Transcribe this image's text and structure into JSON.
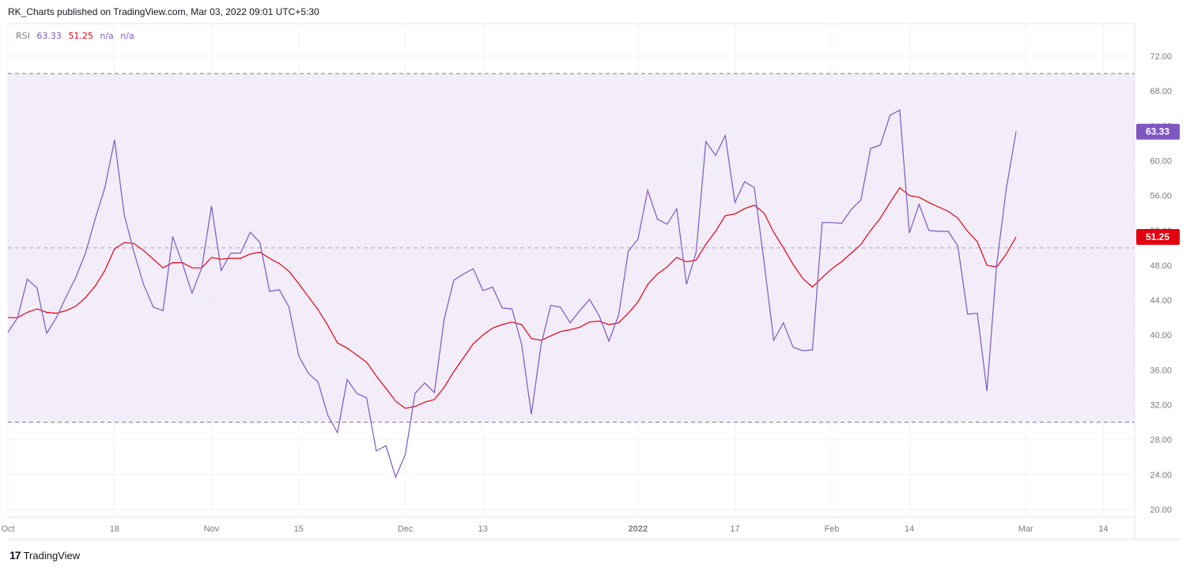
{
  "header": {
    "text": "RK_Charts published on TradingView.com, Mar 03, 2022 09:01 UTC+5:30"
  },
  "legend": {
    "name": "RSI",
    "rsi_value": "63.33",
    "ma_value": "51.25",
    "na1": "n/a",
    "na2": "n/a"
  },
  "footer": {
    "logo": "17",
    "brand": "TradingView"
  },
  "colors": {
    "rsi": "#7e57c2",
    "ma": "#e3000f",
    "band": "#ede7f6",
    "grid": "#f0f3fa"
  },
  "chart_data": {
    "type": "line",
    "x_ticks": [
      {
        "label": "Oct",
        "i": 0
      },
      {
        "label": "18",
        "i": 11
      },
      {
        "label": "Nov",
        "i": 21
      },
      {
        "label": "15",
        "i": 30
      },
      {
        "label": "Dec",
        "i": 41
      },
      {
        "label": "13",
        "i": 49
      },
      {
        "label": "2022",
        "i": 65
      },
      {
        "label": "17",
        "i": 75
      },
      {
        "label": "Feb",
        "i": 85
      },
      {
        "label": "14",
        "i": 93
      },
      {
        "label": "Mar",
        "i": 105
      },
      {
        "label": "14",
        "i": 113
      }
    ],
    "y_ticks": [
      "72.00",
      "68.00",
      "64.00",
      "60.00",
      "56.00",
      "52.00",
      "48.00",
      "44.00",
      "40.00",
      "36.00",
      "32.00",
      "28.00",
      "24.00",
      "20.00"
    ],
    "ylim": [
      20,
      72
    ],
    "bands": {
      "upper": 70,
      "middle": 50,
      "lower": 30
    },
    "series": [
      {
        "name": "RSI",
        "values": [
          40.3,
          42.0,
          46.4,
          45.4,
          40.2,
          42.0,
          44.4,
          46.6,
          49.4,
          53.3,
          56.9,
          62.4,
          53.8,
          49.5,
          45.8,
          43.2,
          42.8,
          51.3,
          48.2,
          44.8,
          47.7,
          54.8,
          47.4,
          49.4,
          49.4,
          51.8,
          50.6,
          45.0,
          45.2,
          43.2,
          37.6,
          35.6,
          34.6,
          30.8,
          28.8,
          34.9,
          33.3,
          32.8,
          26.7,
          27.3,
          23.7,
          26.3,
          33.3,
          34.5,
          33.4,
          41.8,
          46.3,
          47.0,
          47.6,
          45.1,
          45.5,
          43.1,
          43.0,
          38.9,
          30.9,
          38.9,
          43.4,
          43.2,
          41.4,
          42.8,
          44.1,
          42.2,
          39.3,
          42.3,
          49.6,
          51.0,
          56.6,
          53.3,
          52.7,
          54.5,
          45.8,
          49.5,
          62.2,
          60.6,
          62.9,
          55.2,
          57.6,
          56.9,
          48.4,
          39.4,
          41.4,
          38.6,
          38.2,
          38.3,
          52.9,
          52.9,
          52.8,
          54.4,
          55.5,
          61.4,
          61.8,
          65.2,
          65.8,
          51.7,
          55.0,
          52.0,
          51.9,
          51.9,
          50.2,
          42.4,
          42.5,
          33.6,
          48.1,
          56.8,
          63.33
        ],
        "color": "#7e57c2"
      },
      {
        "name": "MA",
        "values": [
          42.0,
          42.0,
          42.6,
          43.0,
          42.6,
          42.5,
          42.8,
          43.3,
          44.3,
          45.6,
          47.4,
          49.9,
          50.6,
          50.5,
          49.7,
          48.7,
          47.7,
          48.3,
          48.3,
          47.7,
          47.7,
          48.9,
          48.7,
          48.8,
          48.8,
          49.3,
          49.5,
          48.8,
          48.2,
          47.3,
          45.9,
          44.4,
          42.9,
          41.1,
          39.1,
          38.5,
          37.7,
          36.9,
          35.3,
          33.9,
          32.4,
          31.6,
          31.8,
          32.3,
          32.6,
          34.0,
          35.8,
          37.4,
          39.0,
          40.0,
          40.8,
          41.2,
          41.5,
          41.2,
          39.6,
          39.4,
          39.9,
          40.4,
          40.6,
          40.9,
          41.5,
          41.6,
          41.2,
          41.4,
          42.5,
          43.8,
          45.8,
          47.0,
          47.8,
          48.9,
          48.4,
          48.6,
          50.4,
          51.9,
          53.7,
          53.9,
          54.5,
          54.9,
          54.0,
          51.8,
          50.0,
          48.1,
          46.5,
          45.5,
          46.6,
          47.6,
          48.4,
          49.4,
          50.4,
          52.0,
          53.4,
          55.2,
          56.9,
          56.0,
          55.8,
          55.2,
          54.7,
          54.2,
          53.4,
          51.9,
          50.7,
          48.0,
          47.8,
          49.3,
          51.25
        ],
        "color": "#e3000f"
      }
    ]
  }
}
